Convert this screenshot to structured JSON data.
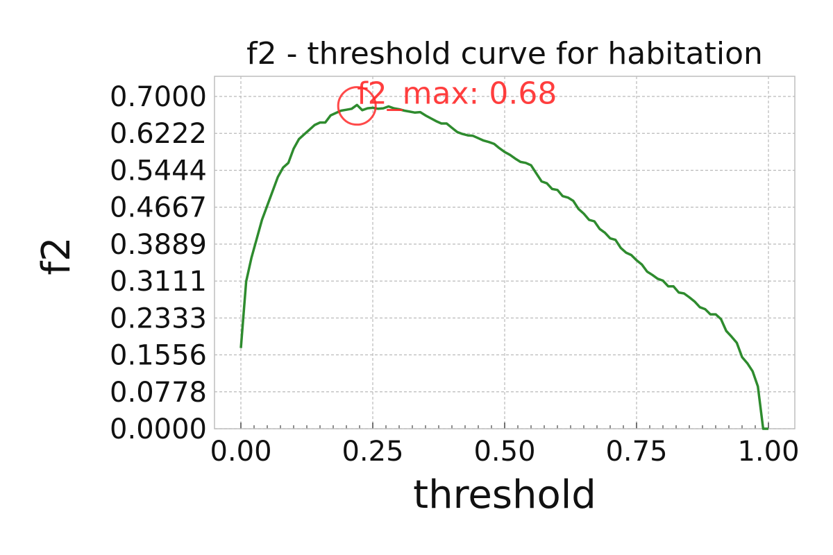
{
  "chart_data": {
    "type": "line",
    "title": "f2 - threshold curve for habitation",
    "xlabel": "threshold",
    "ylabel": "f2",
    "xlim": [
      -0.05,
      1.05
    ],
    "ylim": [
      0.0,
      0.7
    ],
    "x_ticks": [
      "0.00",
      "0.25",
      "0.50",
      "0.75",
      "1.00"
    ],
    "y_ticks": [
      "0.0000",
      "0.0778",
      "0.1556",
      "0.2333",
      "0.3111",
      "0.3889",
      "0.4667",
      "0.5444",
      "0.6222",
      "0.7000"
    ],
    "grid": true,
    "series": [
      {
        "color": "#2e8b2e",
        "x": [
          0.0,
          0.01,
          0.02,
          0.03,
          0.04,
          0.05,
          0.06,
          0.07,
          0.08,
          0.09,
          0.1,
          0.11,
          0.12,
          0.13,
          0.14,
          0.15,
          0.16,
          0.17,
          0.18,
          0.19,
          0.2,
          0.21,
          0.22,
          0.23,
          0.24,
          0.25,
          0.26,
          0.27,
          0.28,
          0.29,
          0.3,
          0.31,
          0.32,
          0.33,
          0.34,
          0.35,
          0.36,
          0.37,
          0.38,
          0.39,
          0.4,
          0.41,
          0.42,
          0.43,
          0.44,
          0.45,
          0.46,
          0.47,
          0.48,
          0.49,
          0.5,
          0.51,
          0.52,
          0.53,
          0.54,
          0.55,
          0.56,
          0.57,
          0.58,
          0.59,
          0.6,
          0.61,
          0.62,
          0.63,
          0.64,
          0.65,
          0.66,
          0.67,
          0.68,
          0.69,
          0.7,
          0.71,
          0.72,
          0.73,
          0.74,
          0.75,
          0.76,
          0.77,
          0.78,
          0.79,
          0.8,
          0.81,
          0.82,
          0.83,
          0.84,
          0.85,
          0.86,
          0.87,
          0.88,
          0.89,
          0.9,
          0.91,
          0.92,
          0.93,
          0.94,
          0.95,
          0.96,
          0.97,
          0.98,
          0.99,
          1.0
        ],
        "y": [
          0.17,
          0.31,
          0.36,
          0.4,
          0.44,
          0.47,
          0.5,
          0.53,
          0.55,
          0.56,
          0.59,
          0.61,
          0.62,
          0.63,
          0.64,
          0.645,
          0.645,
          0.66,
          0.665,
          0.67,
          0.672,
          0.674,
          0.682,
          0.671,
          0.675,
          0.676,
          0.674,
          0.675,
          0.679,
          0.675,
          0.673,
          0.67,
          0.668,
          0.666,
          0.667,
          0.66,
          0.654,
          0.648,
          0.643,
          0.643,
          0.634,
          0.625,
          0.621,
          0.618,
          0.617,
          0.612,
          0.607,
          0.604,
          0.6,
          0.591,
          0.583,
          0.577,
          0.569,
          0.562,
          0.56,
          0.555,
          0.538,
          0.521,
          0.517,
          0.505,
          0.503,
          0.49,
          0.487,
          0.48,
          0.463,
          0.453,
          0.44,
          0.437,
          0.421,
          0.413,
          0.401,
          0.398,
          0.381,
          0.371,
          0.366,
          0.355,
          0.346,
          0.331,
          0.324,
          0.316,
          0.312,
          0.3,
          0.3,
          0.287,
          0.285,
          0.277,
          0.268,
          0.256,
          0.252,
          0.241,
          0.241,
          0.231,
          0.206,
          0.194,
          0.181,
          0.151,
          0.138,
          0.121,
          0.089,
          0.0,
          0.0
        ]
      }
    ],
    "annotations": [
      {
        "text": "f2_max: 0.68",
        "x": 0.22,
        "y": 0.68,
        "color": "#ff2a2a",
        "marker": "circle"
      }
    ]
  }
}
